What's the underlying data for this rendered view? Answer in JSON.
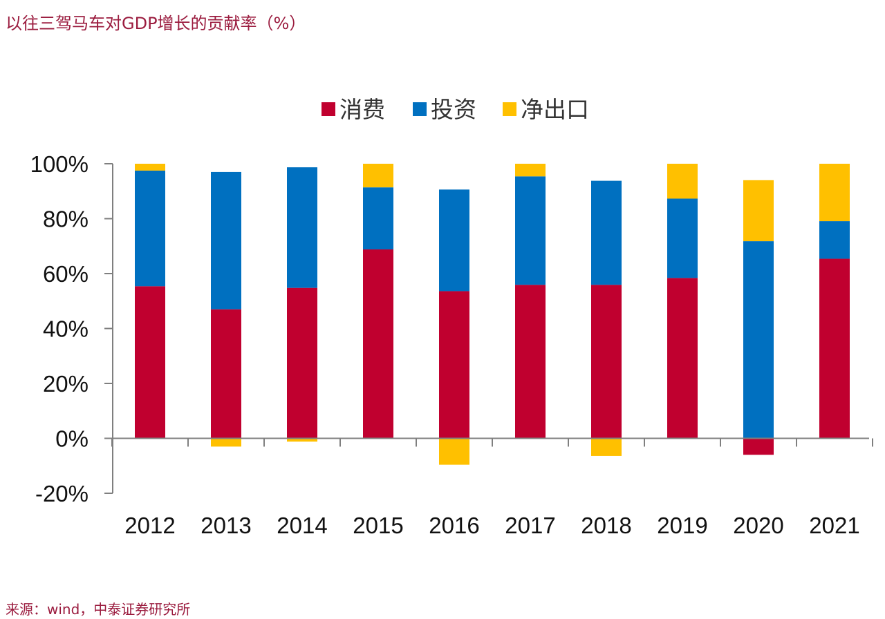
{
  "header": {
    "title": "以往三驾马车对GDP增长的贡献率（%）"
  },
  "footer": {
    "source": "来源：wind，中泰证券研究所"
  },
  "chart_data": {
    "type": "bar",
    "stacked": true,
    "categories": [
      "2012",
      "2013",
      "2014",
      "2015",
      "2016",
      "2017",
      "2018",
      "2019",
      "2020",
      "2021"
    ],
    "series": [
      {
        "name": "消费",
        "color": "#c0002f",
        "values": [
          55.4,
          47.0,
          54.8,
          68.8,
          53.6,
          55.9,
          55.9,
          58.4,
          -6.0,
          65.4
        ]
      },
      {
        "name": "投资",
        "color": "#0070c0",
        "values": [
          42.1,
          50.0,
          43.9,
          22.6,
          37.0,
          39.5,
          37.9,
          28.9,
          71.8,
          13.7
        ]
      },
      {
        "name": "净出口",
        "color": "#ffc000",
        "values": [
          2.5,
          -3.0,
          -1.2,
          8.6,
          -9.6,
          4.6,
          -6.4,
          12.7,
          22.2,
          20.9
        ]
      }
    ],
    "ylim": [
      -20,
      100
    ],
    "yticks": [
      "100%",
      "80%",
      "60%",
      "40%",
      "20%",
      "0%",
      "-20%"
    ],
    "ytick_values": [
      100,
      80,
      60,
      40,
      20,
      0,
      -20
    ],
    "legend_position": "top-center",
    "grid": false,
    "xlabel": "",
    "ylabel": ""
  }
}
